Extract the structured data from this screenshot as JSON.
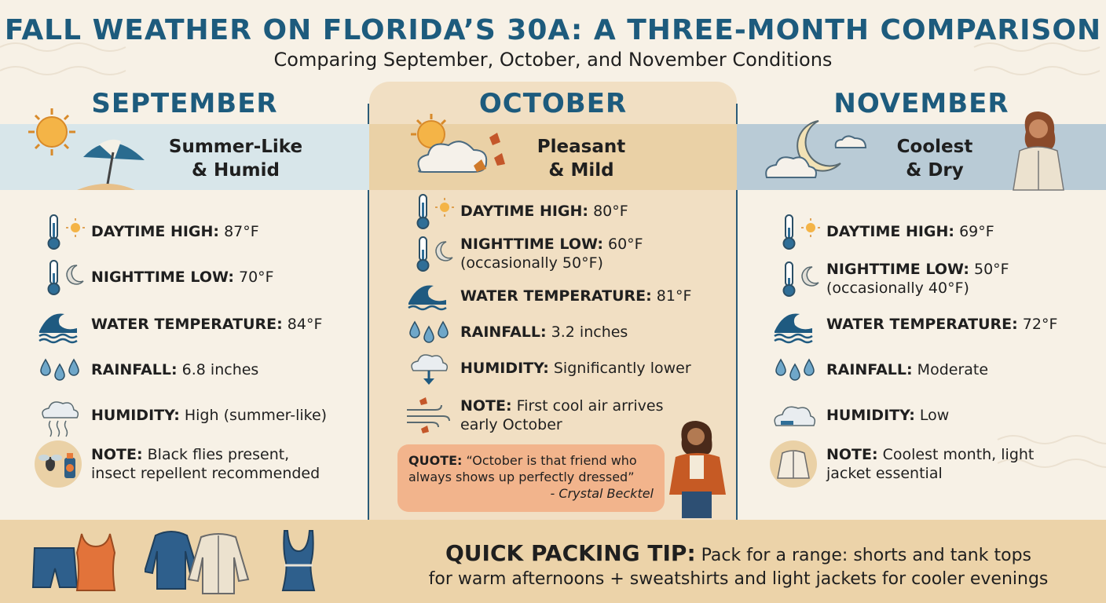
{
  "title": "FALL WEATHER ON FLORIDA’S 30A: A THREE-MONTH COMPARISON",
  "subtitle": "Comparing September, October, and November Conditions",
  "colors": {
    "accent": "#1d5b7d",
    "sep_band": "#d8e6ea",
    "oct_panel": "#f1dfc3",
    "oct_band": "#ead1a6",
    "nov_band": "#b9cbd6",
    "quote_bg": "#f2b48c",
    "bottom_bar": "#ecd3a9"
  },
  "september": {
    "name": "SEPTEMBER",
    "tagline_1": "Summer-Like",
    "tagline_2": "& Humid",
    "high_label": "DAYTIME HIGH:",
    "high_value": "87°F",
    "low_label": "NIGHTTIME LOW:",
    "low_value": "70°F",
    "water_label": "WATER TEMPERATURE:",
    "water_value": "84°F",
    "rain_label": "RAINFALL:",
    "rain_value": "6.8 inches",
    "humidity_label": "HUMIDITY:",
    "humidity_value": "High (summer-like)",
    "note_label": "NOTE:",
    "note_line1": "Black flies present,",
    "note_line2": "insect repellent recommended"
  },
  "october": {
    "name": "OCTOBER",
    "tagline_1": "Pleasant",
    "tagline_2": "& Mild",
    "high_label": "DAYTIME HIGH:",
    "high_value": "80°F",
    "low_label": "NIGHTTIME LOW:",
    "low_value": "60°F",
    "low_extra": "(occasionally 50°F)",
    "water_label": "WATER TEMPERATURE:",
    "water_value": "81°F",
    "rain_label": "RAINFALL:",
    "rain_value": "3.2 inches",
    "humidity_label": "HUMIDITY:",
    "humidity_value": "Significantly lower",
    "note_label": "NOTE:",
    "note_line1": "First cool air arrives",
    "note_line2": "early October",
    "quote_label": "QUOTE:",
    "quote_line1": "“October is that friend who",
    "quote_line2": "always shows up perfectly dressed”",
    "quote_author": "- Crystal Becktel"
  },
  "november": {
    "name": "NOVEMBER",
    "tagline_1": "Coolest",
    "tagline_2": "& Dry",
    "high_label": "DAYTIME HIGH:",
    "high_value": "69°F",
    "low_label": "NIGHTTIME LOW:",
    "low_value": "50°F",
    "low_extra": "(occasionally 40°F)",
    "water_label": "WATER TEMPERATURE:",
    "water_value": "72°F",
    "rain_label": "RAINFALL:",
    "rain_value": "Moderate",
    "humidity_label": "HUMIDITY:",
    "humidity_value": "Low",
    "note_label": "NOTE:",
    "note_line1": "Coolest month, light",
    "note_line2": "jacket essential"
  },
  "packing": {
    "label": "QUICK PACKING TIP:",
    "text_1": "Pack for a range: shorts and tank tops",
    "text_2": "for warm afternoons + sweatshirts and light jackets for cooler evenings"
  },
  "icons": [
    "sun-icon",
    "beach-umbrella-icon",
    "sun-cloud-leaves-icon",
    "moon-cloud-icon",
    "woman-jacket-icon",
    "thermometer-sun-icon",
    "thermometer-moon-icon",
    "wave-icon",
    "raindrops-icon",
    "humid-cloud-icon",
    "fly-repellent-icon",
    "cloud-down-arrow-icon",
    "wind-leaves-icon",
    "woman-blazer-icon",
    "low-humidity-cloud-icon",
    "jacket-icon",
    "shorts-icon",
    "tank-top-icon",
    "sweatshirt-icon",
    "swimsuit-icon"
  ]
}
